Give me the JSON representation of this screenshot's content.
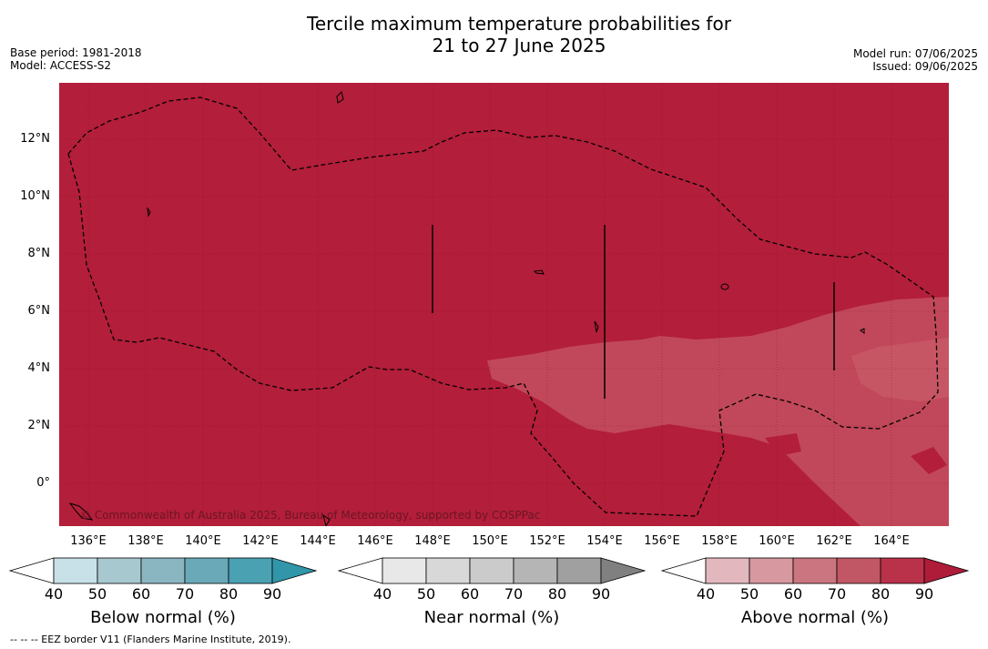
{
  "title_line1": "Tercile maximum temperature probabilities for",
  "title_line2": "21 to 27 June 2025",
  "base_period": "Base period: 1981-2018",
  "model": "Model: ACCESS-S2",
  "model_run": "Model run: 07/06/2025",
  "issued": "Issued: 09/06/2025",
  "copyright": "© Commonwealth of Australia 2025, Bureau of Meteorology, supported by COSPPac",
  "footnote": "--  --  -- EEZ border V11 (Flanders Marine Institute, 2019).",
  "lat_labels": [
    "12°N",
    "10°N",
    "8°N",
    "6°N",
    "4°N",
    "2°N",
    "0°"
  ],
  "lon_labels": [
    "136°E",
    "138°E",
    "140°E",
    "142°E",
    "144°E",
    "146°E",
    "148°E",
    "150°E",
    "152°E",
    "154°E",
    "156°E",
    "158°E",
    "160°E",
    "162°E",
    "164°E"
  ],
  "colorbars": [
    {
      "title": "Below normal (%)",
      "ticks": [
        "40",
        "50",
        "60",
        "70",
        "80",
        "90"
      ],
      "colors": [
        "#ffffff",
        "#c8e1e8",
        "#a8c8d0",
        "#8ab6c2",
        "#6aa9b8",
        "#4aa1b2",
        "#3196a9"
      ]
    },
    {
      "title": "Near normal (%)",
      "ticks": [
        "40",
        "50",
        "60",
        "70",
        "80",
        "90"
      ],
      "colors": [
        "#ffffff",
        "#e8e8e8",
        "#d8d8d8",
        "#cbcbcb",
        "#b5b5b5",
        "#a0a0a0",
        "#808080"
      ]
    },
    {
      "title": "Above normal (%)",
      "ticks": [
        "40",
        "50",
        "60",
        "70",
        "80",
        "90"
      ],
      "colors": [
        "#ffffff",
        "#e2b8be",
        "#d7989f",
        "#ca757f",
        "#c15764",
        "#b9324a",
        "#ae1c3a"
      ]
    }
  ],
  "colors": {
    "above_90": "#b31e3a",
    "above_80": "#c1485a",
    "above_70": "#c75664"
  }
}
